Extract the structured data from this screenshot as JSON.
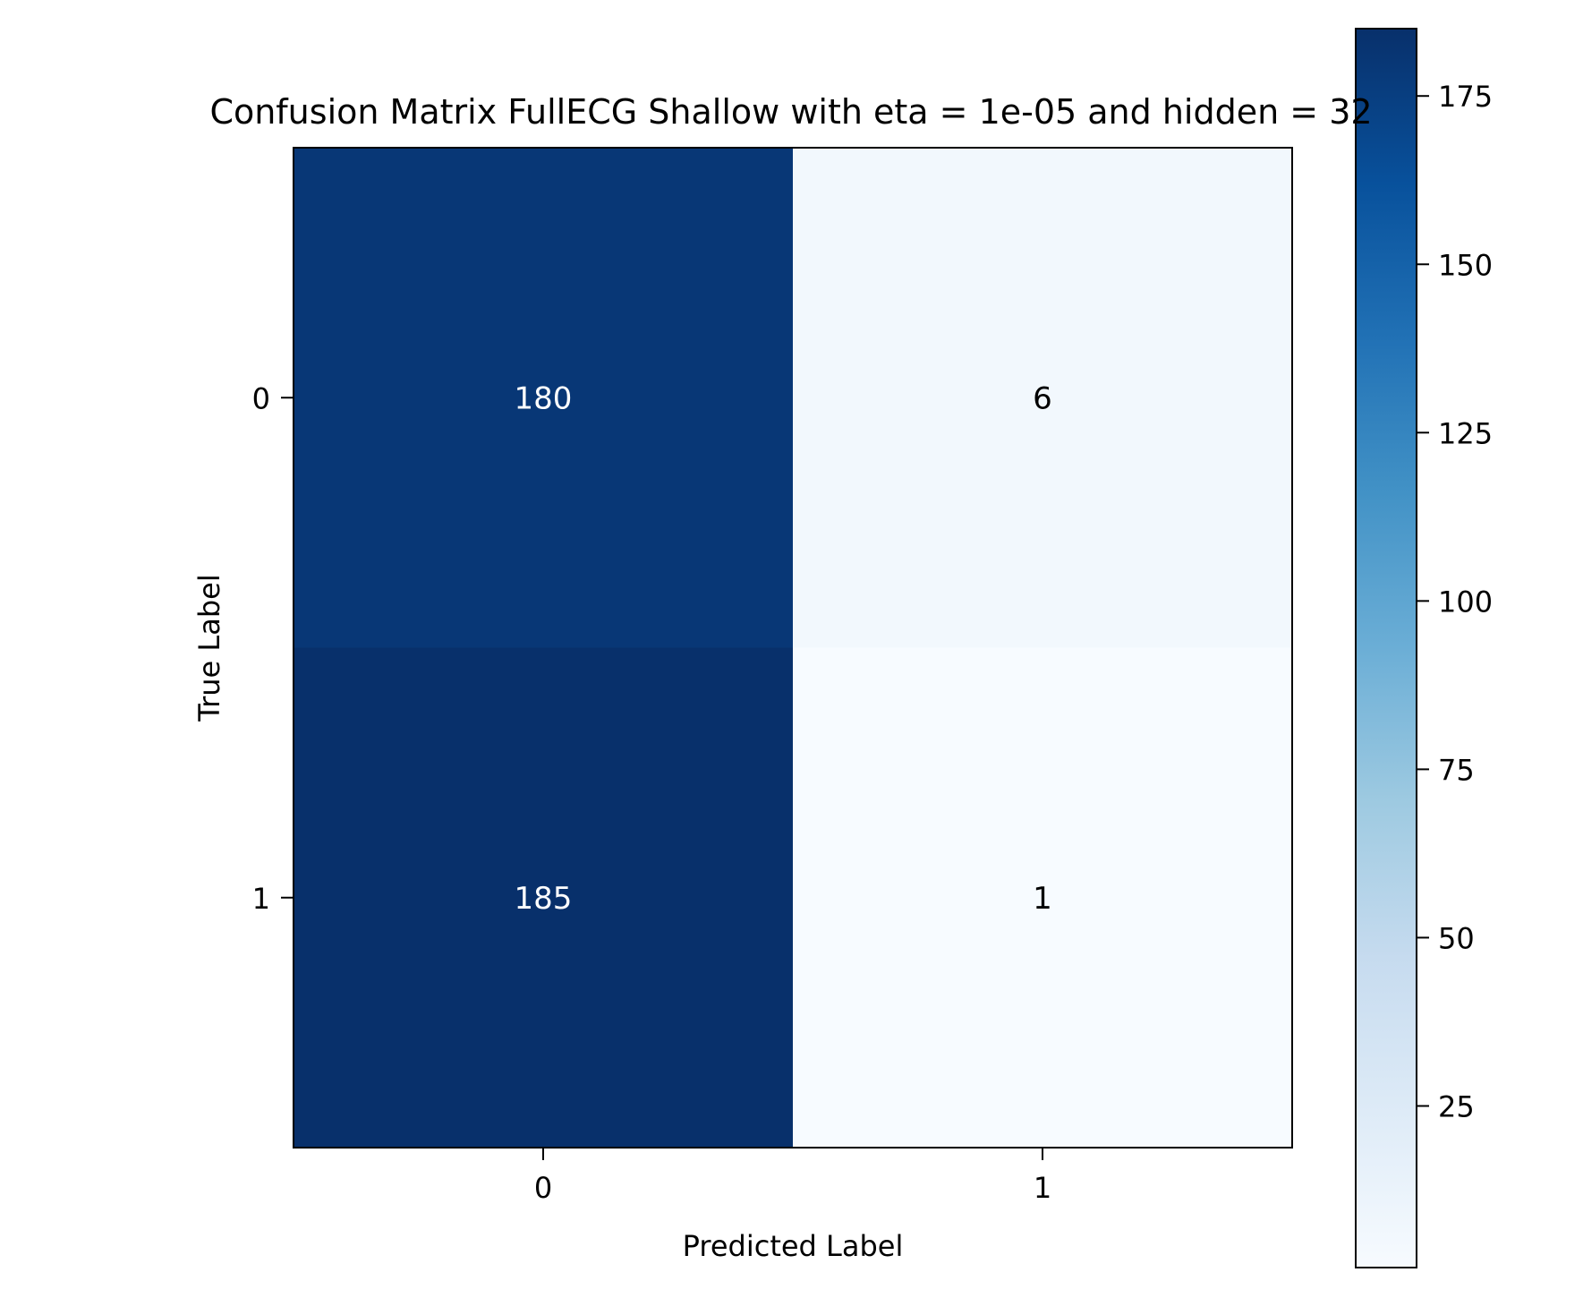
{
  "chart_data": {
    "type": "heatmap",
    "title": "Confusion Matrix FullECG Shallow with eta = 1e-05 and hidden = 32",
    "xlabel": "Predicted Label",
    "ylabel": "True Label",
    "x_categories": [
      "0",
      "1"
    ],
    "y_categories": [
      "0",
      "1"
    ],
    "values": [
      [
        180,
        6
      ],
      [
        185,
        1
      ]
    ],
    "colormap": "Blues",
    "colorbar": {
      "range": [
        1,
        185
      ],
      "ticks": [
        25,
        50,
        75,
        100,
        125,
        150,
        175
      ]
    },
    "grid": false
  },
  "colors": {
    "text_on_dark": "#ffffff",
    "text_on_light": "#000000",
    "axis": "#000000"
  }
}
